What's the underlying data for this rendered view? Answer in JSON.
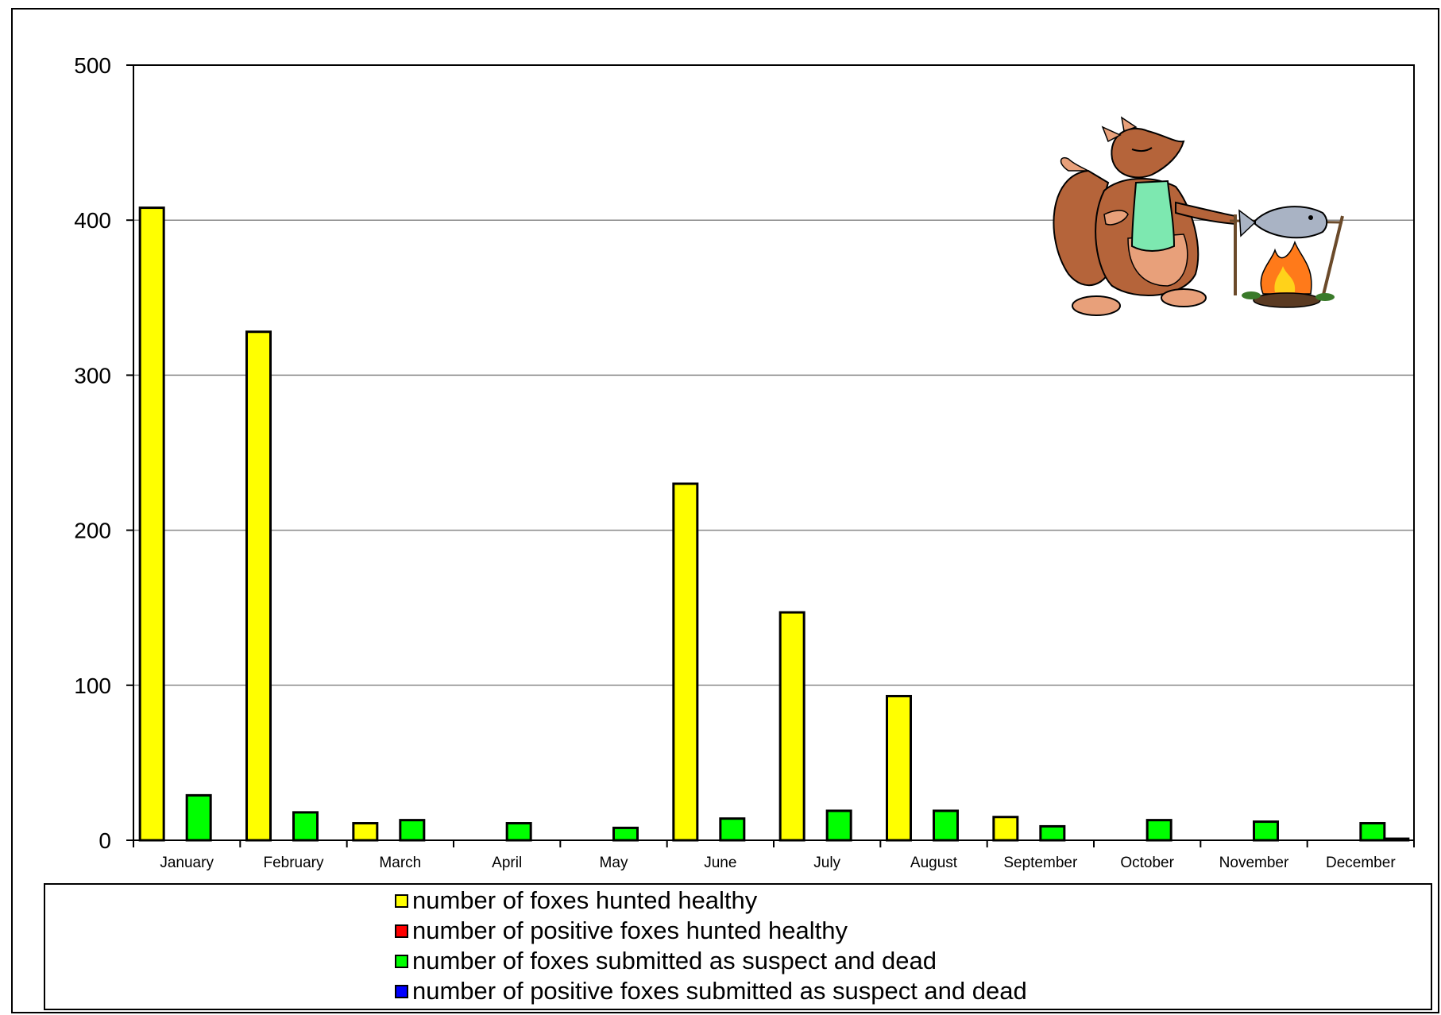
{
  "chart_data": {
    "type": "bar",
    "categories": [
      "January",
      "February",
      "March",
      "April",
      "May",
      "June",
      "July",
      "August",
      "September",
      "October",
      "November",
      "December"
    ],
    "series": [
      {
        "name": "number of foxes hunted healthy",
        "color": "#ffff00",
        "values": [
          408,
          328,
          11,
          0,
          0,
          230,
          147,
          93,
          15,
          0,
          0,
          0
        ]
      },
      {
        "name": "number of positive foxes hunted healthy",
        "color": "#ff0000",
        "values": [
          0,
          0,
          0,
          0,
          0,
          0,
          0,
          0,
          0,
          0,
          0,
          0
        ]
      },
      {
        "name": "number of foxes submitted as suspect and dead",
        "color": "#00ff00",
        "values": [
          29,
          18,
          13,
          11,
          8,
          14,
          19,
          19,
          9,
          13,
          12,
          11
        ]
      },
      {
        "name": "number of positive foxes submitted as suspect and dead",
        "color": "#0000ff",
        "values": [
          0,
          0,
          0,
          0,
          0,
          0,
          0,
          0,
          0,
          0,
          0,
          1
        ]
      }
    ],
    "yticks": [
      0,
      100,
      200,
      300,
      400,
      500
    ],
    "ylim": [
      0,
      500
    ],
    "grid": true,
    "legend_position": "bottom"
  },
  "decoration": {
    "icon": "fox-cooking-fish-icon"
  }
}
